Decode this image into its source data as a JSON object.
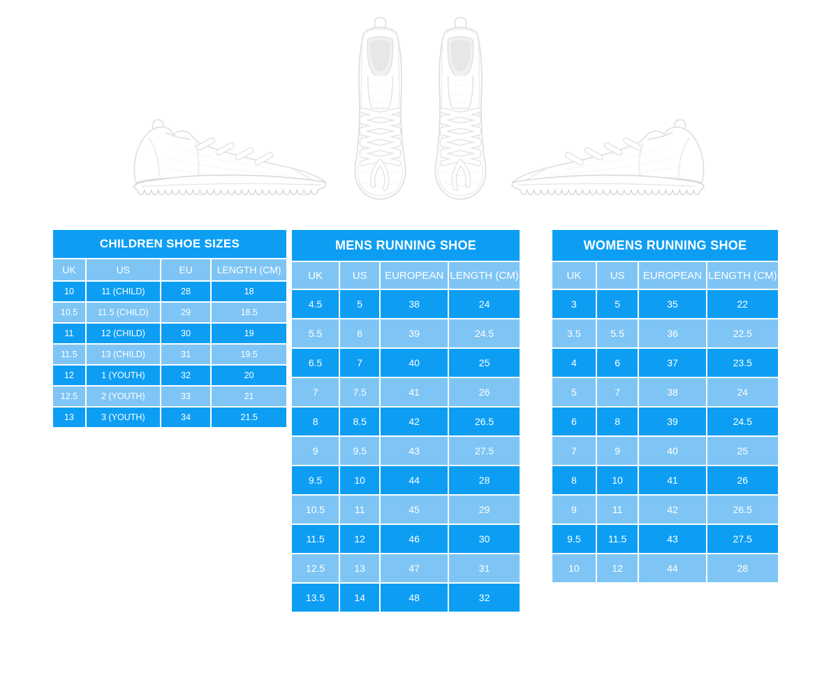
{
  "page": {
    "background": "#ffffff"
  },
  "colors": {
    "dark_blue": "#0d9ef4",
    "light_blue": "#7ec5f5",
    "text": "#ffffff"
  },
  "shoes": {
    "left": "white-running-shoe-side-view-facing-right",
    "center": "white-running-shoes-pair-top-view",
    "right": "white-running-shoe-side-view-facing-left"
  },
  "tables": [
    {
      "id": "children",
      "title": "CHILDREN SHOE SIZES",
      "headers": [
        "UK",
        "US",
        "EU",
        "LENGTH (CM)"
      ],
      "rows": [
        [
          "10",
          "11 (CHILD)",
          "28",
          "18"
        ],
        [
          "10.5",
          "11.5 (CHILD)",
          "29",
          "18.5"
        ],
        [
          "11",
          "12 (CHILD)",
          "30",
          "19"
        ],
        [
          "11.5",
          "13 (CHILD)",
          "31",
          "19.5"
        ],
        [
          "12",
          "1 (YOUTH)",
          "32",
          "20"
        ],
        [
          "12.5",
          "2 (YOUTH)",
          "33",
          "21"
        ],
        [
          "13",
          "3 (YOUTH)",
          "34",
          "21.5"
        ]
      ]
    },
    {
      "id": "mens",
      "title": "MENS RUNNING SHOE",
      "headers": [
        "UK",
        "US",
        "EUROPEAN",
        "LENGTH (CM)"
      ],
      "rows": [
        [
          "4.5",
          "5",
          "38",
          "24"
        ],
        [
          "5.5",
          "6",
          "39",
          "24.5"
        ],
        [
          "6.5",
          "7",
          "40",
          "25"
        ],
        [
          "7",
          "7.5",
          "41",
          "26"
        ],
        [
          "8",
          "8.5",
          "42",
          "26.5"
        ],
        [
          "9",
          "9.5",
          "43",
          "27.5"
        ],
        [
          "9.5",
          "10",
          "44",
          "28"
        ],
        [
          "10.5",
          "11",
          "45",
          "29"
        ],
        [
          "11.5",
          "12",
          "46",
          "30"
        ],
        [
          "12.5",
          "13",
          "47",
          "31"
        ],
        [
          "13.5",
          "14",
          "48",
          "32"
        ]
      ]
    },
    {
      "id": "womens",
      "title": "WOMENS RUNNING SHOE",
      "headers": [
        "UK",
        "US",
        "EUROPEAN",
        "LENGTH (CM)"
      ],
      "rows": [
        [
          "3",
          "5",
          "35",
          "22"
        ],
        [
          "3.5",
          "5.5",
          "36",
          "22.5"
        ],
        [
          "4",
          "6",
          "37",
          "23.5"
        ],
        [
          "5",
          "7",
          "38",
          "24"
        ],
        [
          "6",
          "8",
          "39",
          "24.5"
        ],
        [
          "7",
          "9",
          "40",
          "25"
        ],
        [
          "8",
          "10",
          "41",
          "26"
        ],
        [
          "9",
          "11",
          "42",
          "26.5"
        ],
        [
          "9.5",
          "11.5",
          "43",
          "27.5"
        ],
        [
          "10",
          "12",
          "44",
          "28"
        ]
      ]
    }
  ]
}
